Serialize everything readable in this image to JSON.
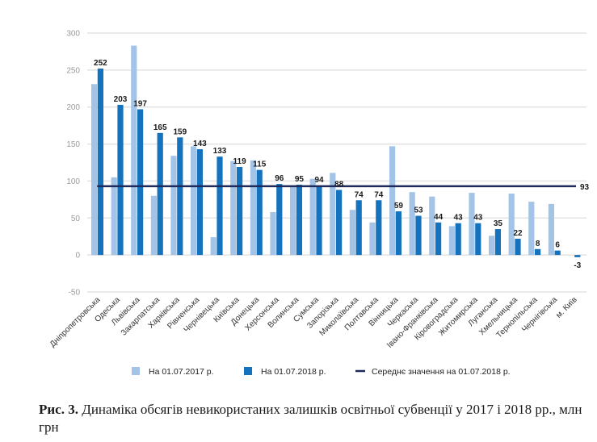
{
  "chart_data": {
    "type": "bar",
    "title": "",
    "xlabel": "",
    "ylabel": "",
    "ylim": [
      -50,
      300
    ],
    "yticks": [
      300,
      250,
      200,
      150,
      100,
      50,
      0,
      -50
    ],
    "grid": true,
    "categories": [
      "Дніпропетровська",
      "Одеська",
      "Львівська",
      "Закарпатська",
      "Харківська",
      "Рівненська",
      "Чернівецька",
      "Київська",
      "Донецька",
      "Херсонська",
      "Волинська",
      "Сумська",
      "Запорізька",
      "Миколаївська",
      "Полтавська",
      "Вінницька",
      "Черкаська",
      "Івано-Франківська",
      "Кіровоградська",
      "Житомирська",
      "Луганська",
      "Хмельницька",
      "Тернопільська",
      "Чернігівська",
      "м. Київ"
    ],
    "series": [
      {
        "name": "На 01.07.2017 р.",
        "color": "#a3c4e6",
        "values": [
          231,
          105,
          283,
          80,
          134,
          147,
          24,
          127,
          128,
          58,
          93,
          103,
          111,
          61,
          44,
          147,
          85,
          79,
          39,
          84,
          26,
          83,
          72,
          69,
          0
        ],
        "labels_shown": false
      },
      {
        "name": "На 01.07.2018 р.",
        "color": "#1572bd",
        "values": [
          252,
          203,
          197,
          165,
          159,
          143,
          133,
          119,
          115,
          96,
          95,
          94,
          88,
          74,
          74,
          59,
          53,
          44,
          43,
          43,
          35,
          22,
          8,
          6,
          -3
        ],
        "labels_shown": true
      }
    ],
    "reference_line": {
      "name": "Середнє значення на 01.07.2018 р.",
      "value": 93,
      "label": "93",
      "color": "#1f2a5c"
    },
    "legend": {
      "placement": "bottom",
      "entries": [
        {
          "label": "На 01.07.2017 р.",
          "type": "square",
          "color": "#a3c4e6"
        },
        {
          "label": "На 01.07.2018 р.",
          "type": "square",
          "color": "#1572bd"
        },
        {
          "label": "Середнє значення на 01.07.2018 р.",
          "type": "line",
          "color": "#1f2a5c"
        }
      ]
    }
  },
  "caption": {
    "prefix": "Рис. 3.",
    "text": " Динаміка обсягів невикористаних залишків освітньої субвенції у 2017 і 2018 рр., млн грн"
  }
}
